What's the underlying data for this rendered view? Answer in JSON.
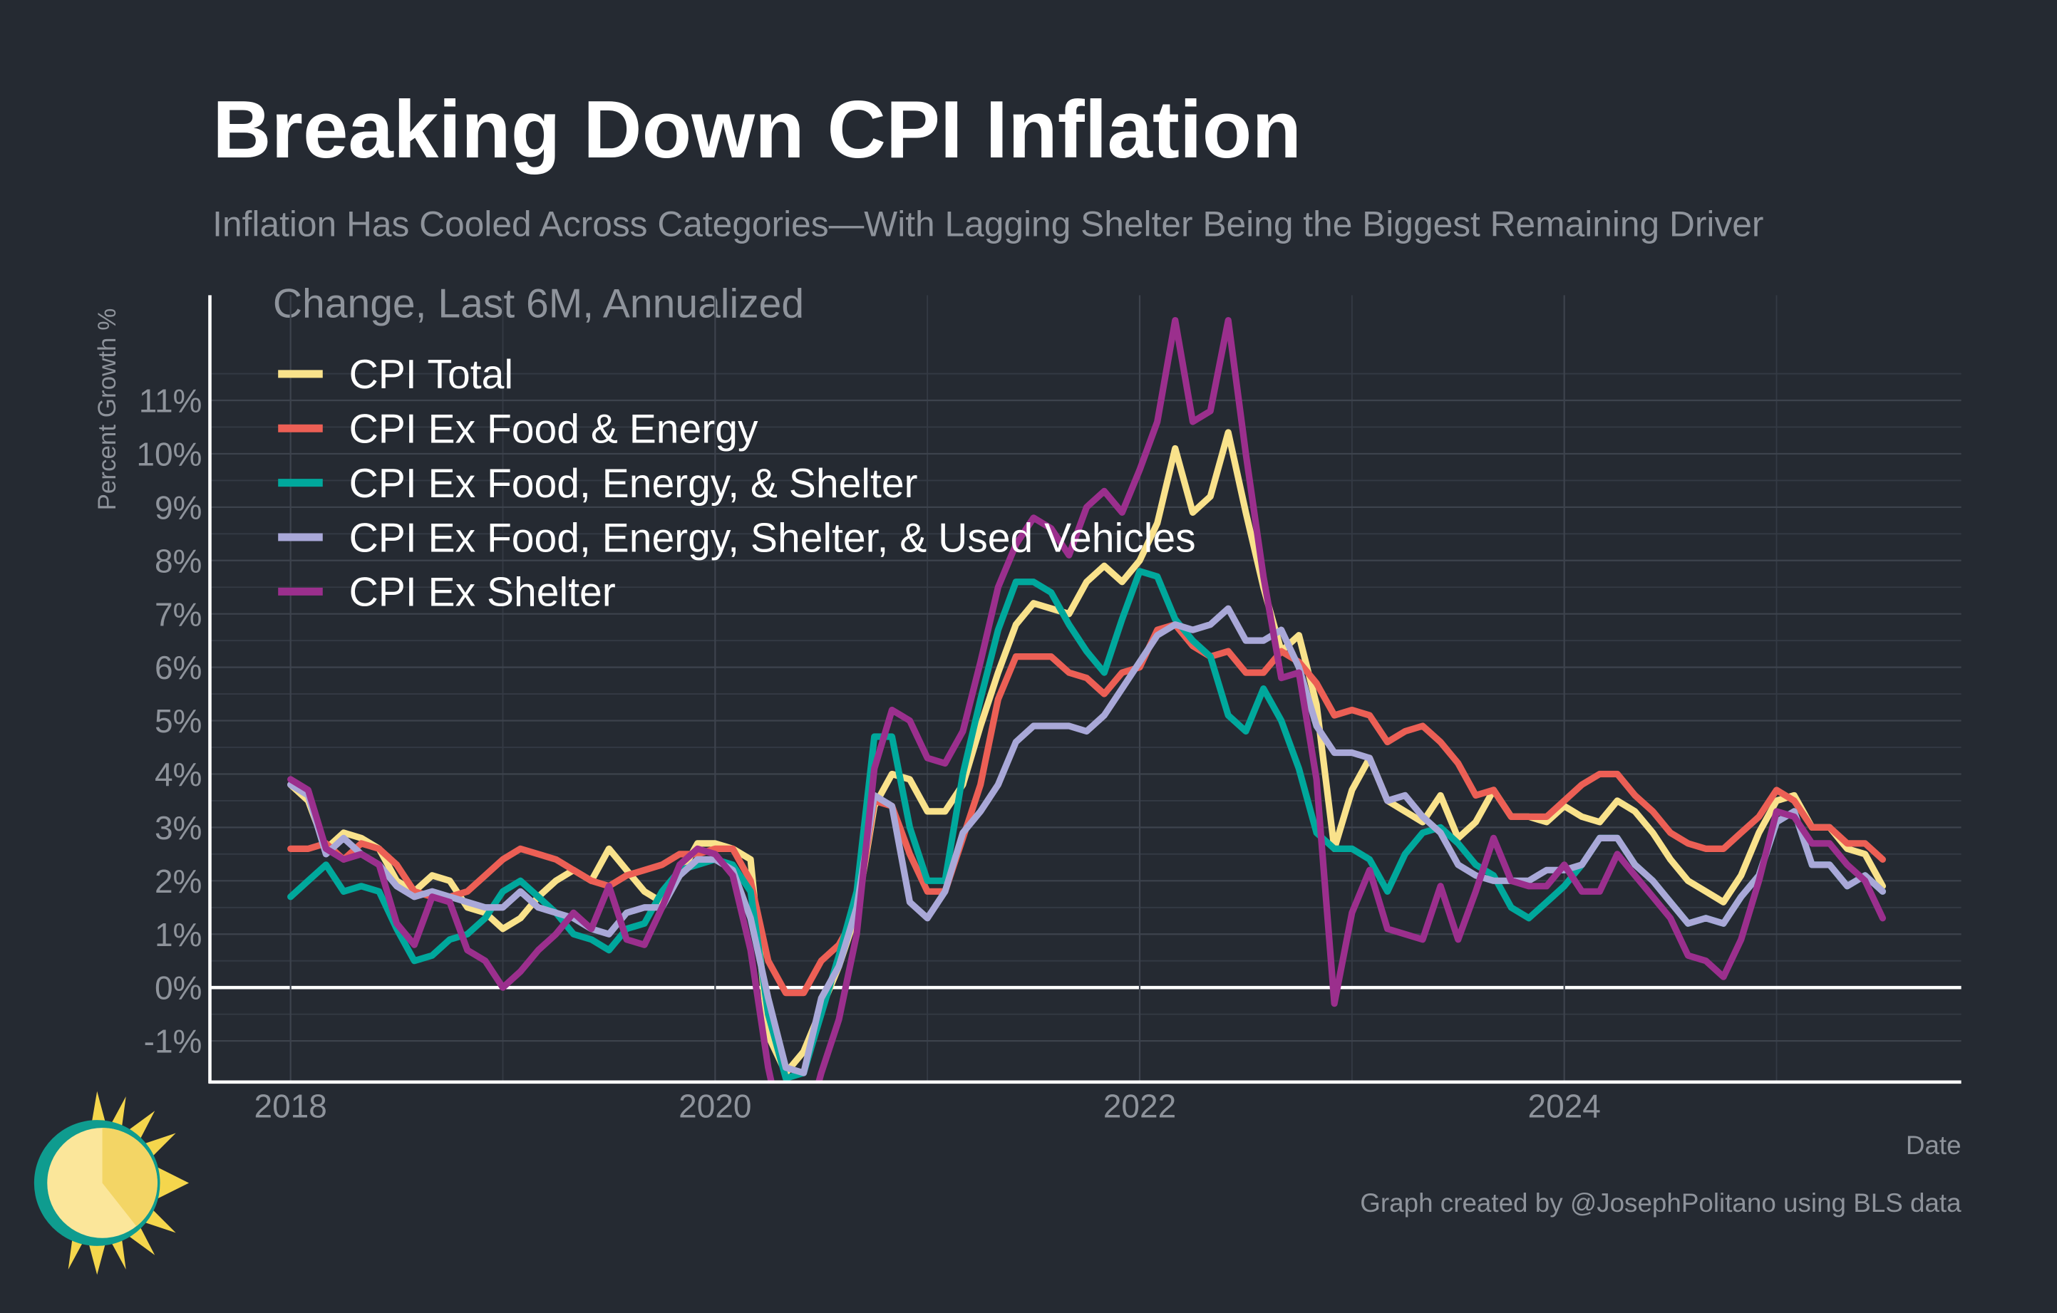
{
  "chart_data": {
    "type": "line",
    "title": "Breaking Down CPI Inflation",
    "subtitle": "Inflation Has Cooled Across Categories—With Lagging Shelter Being the Biggest Remaining Driver",
    "annotation": "Change, Last 6M, Annualized",
    "y_label": "Percent Growth %",
    "x_label": "Date",
    "caption": "Graph created by @JosephPolitano using BLS data",
    "x": [
      2018,
      2018.083,
      2018.167,
      2018.25,
      2018.333,
      2018.417,
      2018.5,
      2018.583,
      2018.667,
      2018.75,
      2018.833,
      2018.917,
      2019,
      2019.083,
      2019.167,
      2019.25,
      2019.333,
      2019.417,
      2019.5,
      2019.583,
      2019.667,
      2019.75,
      2019.833,
      2019.917,
      2020,
      2020.083,
      2020.167,
      2020.25,
      2020.333,
      2020.417,
      2020.5,
      2020.583,
      2020.667,
      2020.75,
      2020.833,
      2020.917,
      2021,
      2021.083,
      2021.167,
      2021.25,
      2021.333,
      2021.417,
      2021.5,
      2021.583,
      2021.667,
      2021.75,
      2021.833,
      2021.917,
      2022,
      2022.083,
      2022.167,
      2022.25,
      2022.333,
      2022.417,
      2022.5,
      2022.583,
      2022.667,
      2022.75,
      2022.833,
      2022.917,
      2023,
      2023.083,
      2023.167,
      2023.25,
      2023.333,
      2023.417,
      2023.5,
      2023.583,
      2023.667,
      2023.75,
      2023.833,
      2023.917,
      2024,
      2024.083,
      2024.167,
      2024.25,
      2024.333,
      2024.417,
      2024.5,
      2024.583,
      2024.667,
      2024.75,
      2024.833,
      2024.917,
      2025,
      2025.083,
      2025.167,
      2025.25,
      2025.333,
      2025.417,
      2025.5
    ],
    "series": [
      {
        "name": "CPI Total",
        "color": "#f9e28b",
        "values": [
          3.8,
          3.5,
          2.6,
          2.9,
          2.8,
          2.6,
          2.0,
          1.8,
          2.1,
          2.0,
          1.5,
          1.4,
          1.1,
          1.3,
          1.7,
          2.0,
          2.2,
          2.0,
          2.6,
          2.2,
          1.8,
          1.6,
          2.1,
          2.7,
          2.7,
          2.6,
          2.4,
          -0.9,
          -1.6,
          -1.2,
          -0.4,
          0.4,
          1.4,
          3.4,
          4.0,
          3.9,
          3.3,
          3.3,
          3.8,
          4.9,
          5.9,
          6.8,
          7.2,
          7.1,
          7.0,
          7.6,
          7.9,
          7.6,
          8.0,
          8.7,
          10.1,
          8.9,
          9.2,
          10.4,
          8.9,
          7.5,
          6.3,
          6.6,
          5.3,
          2.6,
          3.7,
          4.3,
          3.5,
          3.3,
          3.1,
          3.6,
          2.8,
          3.1,
          3.7,
          3.2,
          3.2,
          3.1,
          3.4,
          3.2,
          3.1,
          3.5,
          3.3,
          2.9,
          2.4,
          2.0,
          1.8,
          1.6,
          2.1,
          2.9,
          3.5,
          3.6,
          3.0,
          3.0,
          2.6,
          2.5,
          1.9
        ]
      },
      {
        "name": "CPI Ex Food & Energy",
        "color": "#ec5f55",
        "values": [
          2.6,
          2.6,
          2.7,
          2.4,
          2.7,
          2.6,
          2.3,
          1.8,
          1.7,
          1.7,
          1.8,
          2.1,
          2.4,
          2.6,
          2.5,
          2.4,
          2.2,
          2.0,
          1.9,
          2.1,
          2.2,
          2.3,
          2.5,
          2.5,
          2.6,
          2.6,
          2.0,
          0.5,
          -0.1,
          -0.1,
          0.5,
          0.8,
          1.4,
          3.5,
          3.4,
          2.5,
          1.8,
          1.8,
          2.8,
          3.8,
          5.4,
          6.2,
          6.2,
          6.2,
          5.9,
          5.8,
          5.5,
          5.9,
          6.0,
          6.7,
          6.8,
          6.4,
          6.2,
          6.3,
          5.9,
          5.9,
          6.3,
          6.1,
          5.7,
          5.1,
          5.2,
          5.1,
          4.6,
          4.8,
          4.9,
          4.6,
          4.2,
          3.6,
          3.7,
          3.2,
          3.2,
          3.2,
          3.5,
          3.8,
          4.0,
          4.0,
          3.6,
          3.3,
          2.9,
          2.7,
          2.6,
          2.6,
          2.9,
          3.2,
          3.7,
          3.5,
          3.0,
          3.0,
          2.7,
          2.7,
          2.4
        ]
      },
      {
        "name": "CPI Ex Food, Energy, & Shelter",
        "color": "#00a89c",
        "values": [
          1.7,
          2.0,
          2.3,
          1.8,
          1.9,
          1.8,
          1.1,
          0.5,
          0.6,
          0.9,
          1.0,
          1.3,
          1.8,
          2.0,
          1.7,
          1.4,
          1.0,
          0.9,
          0.7,
          1.1,
          1.2,
          1.8,
          2.2,
          2.3,
          2.4,
          2.3,
          1.8,
          -0.5,
          -1.7,
          -1.6,
          -0.5,
          0.6,
          1.8,
          4.7,
          4.7,
          3.0,
          2.0,
          2.0,
          4.0,
          5.4,
          6.7,
          7.6,
          7.6,
          7.4,
          6.8,
          6.3,
          5.9,
          6.9,
          7.8,
          7.7,
          6.9,
          6.5,
          6.2,
          5.1,
          4.8,
          5.6,
          5.0,
          4.1,
          2.9,
          2.6,
          2.6,
          2.4,
          1.8,
          2.5,
          2.9,
          3.0,
          2.7,
          2.3,
          2.1,
          1.5,
          1.3,
          1.6,
          1.9,
          2.3,
          2.8,
          2.8,
          2.3,
          2.0,
          1.6,
          1.2,
          1.3,
          1.2,
          1.7,
          2.1,
          3.1,
          3.3,
          2.3,
          2.3,
          1.9,
          2.1,
          1.8
        ]
      },
      {
        "name": "CPI Ex Food, Energy, Shelter, & Used Vehicles",
        "color": "#a9a8d8",
        "values": [
          3.8,
          3.6,
          2.5,
          2.8,
          2.5,
          2.3,
          1.9,
          1.7,
          1.8,
          1.7,
          1.6,
          1.5,
          1.5,
          1.8,
          1.5,
          1.4,
          1.3,
          1.1,
          1.0,
          1.4,
          1.5,
          1.5,
          2.1,
          2.4,
          2.4,
          2.2,
          1.3,
          -0.2,
          -1.5,
          -1.6,
          -0.2,
          0.4,
          1.5,
          3.6,
          3.4,
          1.6,
          1.3,
          1.8,
          2.9,
          3.3,
          3.8,
          4.6,
          4.9,
          4.9,
          4.9,
          4.8,
          5.1,
          5.6,
          6.1,
          6.6,
          6.8,
          6.7,
          6.8,
          7.1,
          6.5,
          6.5,
          6.7,
          6.0,
          4.9,
          4.4,
          4.4,
          4.3,
          3.5,
          3.6,
          3.2,
          2.9,
          2.3,
          2.1,
          2.0,
          2.0,
          2.0,
          2.2,
          2.2,
          2.3,
          2.8,
          2.8,
          2.3,
          2.0,
          1.6,
          1.2,
          1.3,
          1.2,
          1.7,
          2.1,
          3.1,
          3.3,
          2.3,
          2.3,
          1.9,
          2.1,
          1.8
        ]
      },
      {
        "name": "CPI Ex Shelter",
        "color": "#9b2f8d",
        "values": [
          3.9,
          3.7,
          2.6,
          2.4,
          2.5,
          2.3,
          1.2,
          0.8,
          1.7,
          1.6,
          0.7,
          0.5,
          0.0,
          0.3,
          0.7,
          1.0,
          1.4,
          1.1,
          1.9,
          0.9,
          0.8,
          1.5,
          2.3,
          2.6,
          2.5,
          2.1,
          0.7,
          -1.5,
          -3.0,
          -2.8,
          -1.6,
          -0.6,
          1.0,
          4.1,
          5.2,
          5.0,
          4.3,
          4.2,
          4.8,
          6.1,
          7.5,
          8.3,
          8.8,
          8.6,
          8.1,
          9.0,
          9.3,
          8.9,
          9.7,
          10.6,
          12.5,
          10.6,
          10.8,
          12.5,
          10.0,
          7.7,
          5.8,
          5.9,
          3.9,
          -0.3,
          1.4,
          2.2,
          1.1,
          1.0,
          0.9,
          1.9,
          0.9,
          1.8,
          2.8,
          2.0,
          1.9,
          1.9,
          2.3,
          1.8,
          1.8,
          2.5,
          2.1,
          1.7,
          1.3,
          0.6,
          0.5,
          0.2,
          0.9,
          2.0,
          3.3,
          3.2,
          2.7,
          2.7,
          2.3,
          2.0,
          1.3
        ]
      }
    ],
    "xlim": [
      2017.62,
      2025.87
    ],
    "xticks": [
      2018,
      2020,
      2022,
      2024
    ],
    "ylim": [
      -1.77,
      12.97
    ],
    "yticks": [
      {
        "value": -1,
        "label": "-1%"
      },
      {
        "value": 0,
        "label": "0%"
      },
      {
        "value": 1,
        "label": "1%"
      },
      {
        "value": 2,
        "label": "2%"
      },
      {
        "value": 3,
        "label": "3%"
      },
      {
        "value": 4,
        "label": "4%"
      },
      {
        "value": 5,
        "label": "5%"
      },
      {
        "value": 6,
        "label": "6%"
      },
      {
        "value": 7,
        "label": "7%"
      },
      {
        "value": 8,
        "label": "8%"
      },
      {
        "value": 9,
        "label": "9%"
      },
      {
        "value": 10,
        "label": "10%"
      },
      {
        "value": 11,
        "label": "11%"
      }
    ],
    "grid": true,
    "legend_position": "upper left"
  }
}
